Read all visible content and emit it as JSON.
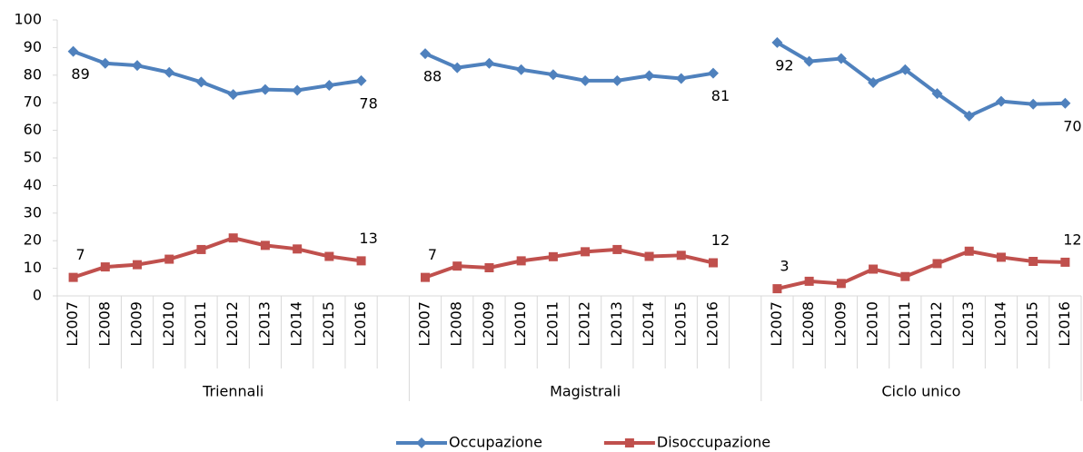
{
  "chart_data": {
    "type": "line",
    "groups": [
      "Triennali",
      "Magistrali",
      "Ciclo unico"
    ],
    "categories": [
      "L2007",
      "L2008",
      "L2009",
      "L2010",
      "L2011",
      "L2012",
      "L2013",
      "L2014",
      "L2015",
      "L2016",
      null,
      "L2007",
      "L2008",
      "L2009",
      "L2010",
      "L2011",
      "L2012",
      "L2013",
      "L2014",
      "L2015",
      "L2016",
      null,
      "L2007",
      "L2008",
      "L2009",
      "L2010",
      "L2011",
      "L2012",
      "L2013",
      "L2014",
      "L2015",
      "L2016"
    ],
    "series": [
      {
        "name": "Occupazione",
        "color": "#4f81bd",
        "marker": "diamond",
        "values": [
          88.6,
          84.3,
          83.5,
          81,
          77.5,
          73,
          74.8,
          74.5,
          76.3,
          78,
          null,
          87.8,
          82.7,
          84.3,
          82,
          80.2,
          78,
          78,
          79.8,
          78.8,
          80.7,
          null,
          91.8,
          85,
          86,
          77.3,
          82,
          73.3,
          65.2,
          70.5,
          69.5,
          69.8
        ],
        "value_labels": [
          "89",
          null,
          null,
          null,
          null,
          null,
          null,
          null,
          null,
          "78",
          null,
          "88",
          null,
          null,
          null,
          null,
          null,
          null,
          null,
          null,
          "81",
          null,
          "92",
          null,
          null,
          null,
          null,
          null,
          null,
          null,
          null,
          "70"
        ]
      },
      {
        "name": "Disoccupazione",
        "color": "#c0504d",
        "marker": "square",
        "values": [
          6.7,
          10.5,
          11.3,
          13.3,
          16.8,
          21,
          18.3,
          17,
          14.3,
          12.7,
          null,
          6.7,
          10.8,
          10.2,
          12.7,
          14.2,
          16,
          16.8,
          14.3,
          14.7,
          12,
          null,
          2.6,
          5.3,
          4.5,
          9.7,
          7,
          11.7,
          16.2,
          14,
          12.5,
          12.2
        ],
        "value_labels": [
          "7",
          null,
          null,
          null,
          null,
          null,
          null,
          null,
          null,
          "13",
          null,
          "7",
          null,
          null,
          null,
          null,
          null,
          null,
          null,
          null,
          "12",
          null,
          "3",
          null,
          null,
          null,
          null,
          null,
          null,
          null,
          null,
          "12"
        ]
      }
    ],
    "ylim": [
      0,
      100
    ],
    "yticks": [
      0,
      10,
      20,
      30,
      40,
      50,
      60,
      70,
      80,
      90,
      100
    ],
    "grid": false,
    "legend": "bottom"
  }
}
